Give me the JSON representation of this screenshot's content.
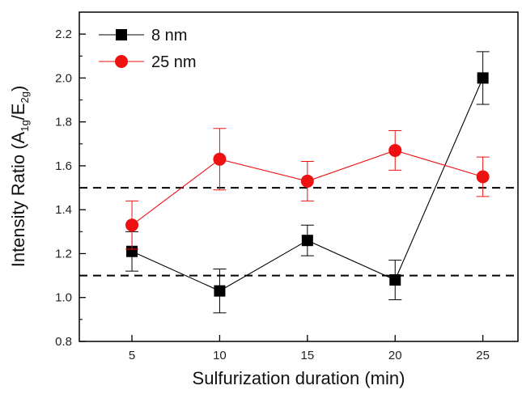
{
  "chart_data": {
    "type": "line",
    "xlabel": "Sulfurization duration (min)",
    "ylabel": {
      "prefix": "Intensity Ratio (A",
      "sub1": "1g",
      "mid": "/E",
      "sub2": "2g",
      "suffix": ")"
    },
    "xlim": [
      2,
      27
    ],
    "ylim": [
      0.8,
      2.3
    ],
    "x": [
      5,
      10,
      15,
      20,
      25
    ],
    "x_tick_labels": [
      "5",
      "10",
      "15",
      "20",
      "25"
    ],
    "y_ticks": [
      0.8,
      1.0,
      1.2,
      1.4,
      1.6,
      1.8,
      2.0,
      2.2
    ],
    "y_tick_labels": [
      "0.8",
      "1.0",
      "1.2",
      "1.4",
      "1.6",
      "1.8",
      "2.0",
      "2.2"
    ],
    "reference_lines": [
      1.5,
      1.1
    ],
    "grid": false,
    "legend_position": "top-left",
    "series": [
      {
        "name": "8 nm",
        "color": "#000000",
        "marker": "square",
        "values": [
          1.21,
          1.03,
          1.26,
          1.08,
          2.0
        ],
        "errors": [
          0.09,
          0.1,
          0.07,
          0.09,
          0.12
        ]
      },
      {
        "name": "25 nm",
        "color": "#ee1111",
        "marker": "circle",
        "values": [
          1.33,
          1.63,
          1.53,
          1.67,
          1.55
        ],
        "errors": [
          0.11,
          0.14,
          0.09,
          0.09,
          0.09
        ]
      }
    ]
  }
}
